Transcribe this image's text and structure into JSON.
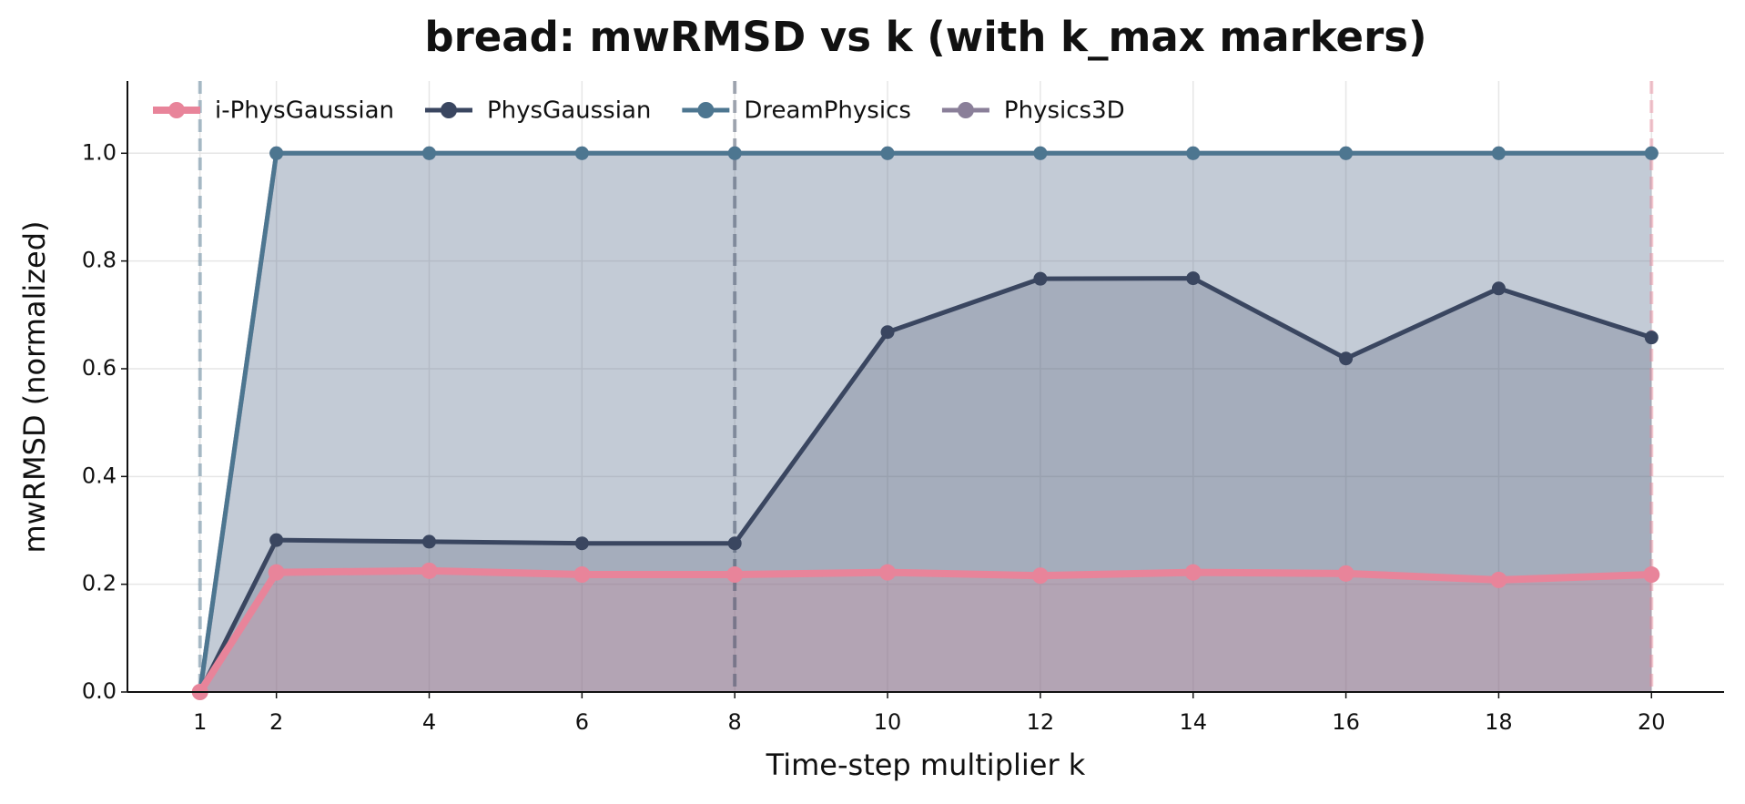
{
  "chart_data": {
    "type": "line",
    "title": "bread: mwRMSD vs k (with k_max markers)",
    "xlabel": "Time-step multiplier  k",
    "ylabel": "mwRMSD (normalized)",
    "x": [
      1,
      2,
      4,
      6,
      8,
      10,
      12,
      14,
      16,
      18,
      20
    ],
    "series": [
      {
        "name": "Physics3D",
        "color": "#8a7f99",
        "values": [
          0,
          1.0,
          1.0,
          1.0,
          1.0,
          1.0,
          1.0,
          1.0,
          1.0,
          1.0,
          1.0
        ]
      },
      {
        "name": "DreamPhysics",
        "color": "#4d7690",
        "values": [
          0,
          1.0,
          1.0,
          1.0,
          1.0,
          1.0,
          1.0,
          1.0,
          1.0,
          1.0,
          1.0
        ],
        "k_max": 1
      },
      {
        "name": "PhysGaussian",
        "color": "#3a4660",
        "values": [
          0,
          0.282,
          0.279,
          0.276,
          0.276,
          0.668,
          0.767,
          0.768,
          0.619,
          0.749,
          0.658
        ],
        "k_max": 8
      },
      {
        "name": "i-PhysGaussian",
        "color": "#e8849a",
        "values": [
          0,
          0.222,
          0.225,
          0.218,
          0.218,
          0.222,
          0.216,
          0.222,
          0.22,
          0.208,
          0.218
        ],
        "k_max": 20
      }
    ],
    "legend_order": [
      "i-PhysGaussian",
      "PhysGaussian",
      "DreamPhysics",
      "Physics3D"
    ],
    "legend": "upper left",
    "xlim": [
      0.05,
      20.95
    ],
    "ylim": [
      0,
      1.134
    ],
    "xticks": [
      1,
      2,
      4,
      6,
      8,
      10,
      12,
      14,
      16,
      18,
      20
    ],
    "yticks": [
      {
        "value": 0,
        "label": "0.0"
      },
      {
        "value": 0.2,
        "label": "0.2"
      },
      {
        "value": 0.4,
        "label": "0.4"
      },
      {
        "value": 0.6,
        "label": "0.6"
      },
      {
        "value": 0.8,
        "label": "0.8"
      },
      {
        "value": 1.0,
        "label": "1.0"
      }
    ],
    "grid": true
  }
}
